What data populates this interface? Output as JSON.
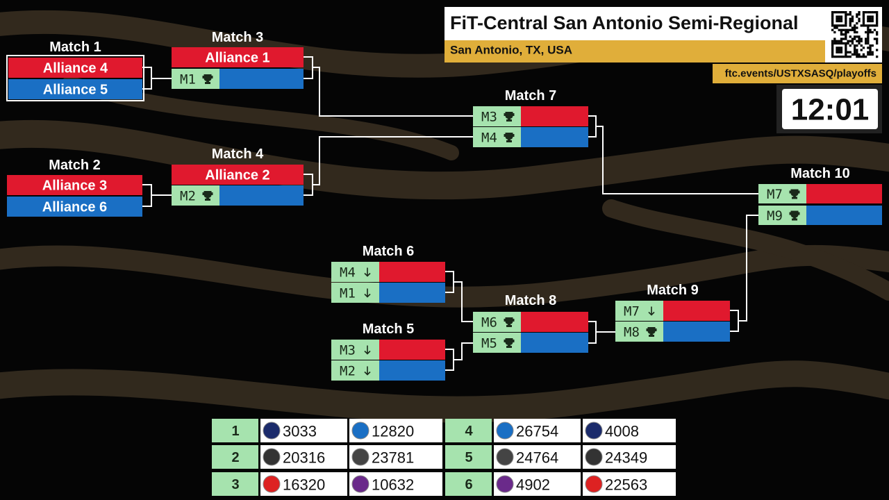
{
  "header": {
    "title": "FiT-Central San Antonio Semi-Regional",
    "location": "San Antonio, TX, USA",
    "url": "ftc.events/USTXSASQ/playoffs",
    "timer": "12:01"
  },
  "matches": [
    {
      "label": "Match 1",
      "slots": [
        {
          "text": "Alliance 4",
          "color": "#e0192e"
        },
        {
          "text": "Alliance 5",
          "color": "#1a6fc4"
        }
      ]
    },
    {
      "label": "Match 2",
      "slots": [
        {
          "text": "Alliance 3",
          "color": "#e0192e"
        },
        {
          "text": "Alliance 6",
          "color": "#1a6fc4"
        }
      ]
    },
    {
      "label": "Match 3",
      "slots": [
        {
          "text": "Alliance 1",
          "color": "#e0192e"
        },
        {
          "source": "M1",
          "icon": "trophy",
          "color": "#1a6fc4"
        }
      ]
    },
    {
      "label": "Match 4",
      "slots": [
        {
          "text": "Alliance 2",
          "color": "#e0192e"
        },
        {
          "source": "M2",
          "icon": "trophy",
          "color": "#1a6fc4"
        }
      ]
    },
    {
      "label": "Match 7",
      "slots": [
        {
          "source": "M3",
          "icon": "trophy",
          "color": "#e0192e"
        },
        {
          "source": "M4",
          "icon": "trophy",
          "color": "#1a6fc4"
        }
      ]
    },
    {
      "label": "Match 10",
      "slots": [
        {
          "source": "M7",
          "icon": "trophy",
          "color": "#e0192e"
        },
        {
          "source": "M9",
          "icon": "trophy",
          "color": "#1a6fc4"
        }
      ]
    },
    {
      "label": "Match 6",
      "slots": [
        {
          "source": "M4",
          "icon": "arrow",
          "color": "#e0192e"
        },
        {
          "source": "M1",
          "icon": "arrow",
          "color": "#1a6fc4"
        }
      ]
    },
    {
      "label": "Match 5",
      "slots": [
        {
          "source": "M3",
          "icon": "arrow",
          "color": "#e0192e"
        },
        {
          "source": "M2",
          "icon": "arrow",
          "color": "#1a6fc4"
        }
      ]
    },
    {
      "label": "Match 8",
      "slots": [
        {
          "source": "M6",
          "icon": "trophy",
          "color": "#e0192e"
        },
        {
          "source": "M5",
          "icon": "trophy",
          "color": "#1a6fc4"
        }
      ]
    },
    {
      "label": "Match 9",
      "slots": [
        {
          "source": "M7",
          "icon": "arrow",
          "color": "#e0192e"
        },
        {
          "source": "M8",
          "icon": "trophy",
          "color": "#1a6fc4"
        }
      ]
    }
  ],
  "alliances": [
    {
      "seed": 1,
      "teams": [
        "3033",
        "12820"
      ]
    },
    {
      "seed": 2,
      "teams": [
        "20316",
        "23781"
      ]
    },
    {
      "seed": 3,
      "teams": [
        "16320",
        "10632"
      ]
    },
    {
      "seed": 4,
      "teams": [
        "26754",
        "4008"
      ]
    },
    {
      "seed": 5,
      "teams": [
        "24764",
        "24349"
      ]
    },
    {
      "seed": 6,
      "teams": [
        "4902",
        "22563"
      ]
    }
  ]
}
